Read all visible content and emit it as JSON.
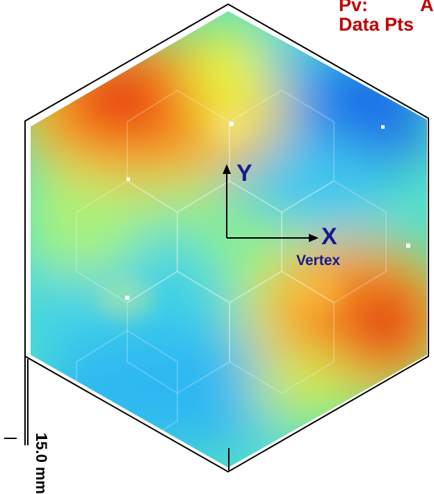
{
  "header": {
    "pv_label": "Pv:",
    "pv_value": "A",
    "data_pts_label": "Data Pts"
  },
  "axes": {
    "y_label": "Y",
    "x_label": "X",
    "origin_label": "Vertex"
  },
  "scale_bar": {
    "label": "15.0 mm"
  },
  "colors": {
    "label_red": "#c00000",
    "axis_navy": "#1a1a8c",
    "outline": "#000000",
    "colormap": [
      "#1c5ce6",
      "#1a9ff0",
      "#33d6f0",
      "#7cf08a",
      "#e8f23a",
      "#fbbf28",
      "#f46a1c",
      "#e2290e"
    ]
  }
}
